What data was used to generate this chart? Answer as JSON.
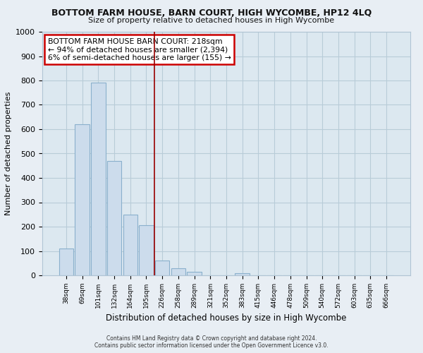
{
  "title": "BOTTOM FARM HOUSE, BARN COURT, HIGH WYCOMBE, HP12 4LQ",
  "subtitle": "Size of property relative to detached houses in High Wycombe",
  "xlabel": "Distribution of detached houses by size in High Wycombe",
  "ylabel": "Number of detached properties",
  "footer_line1": "Contains HM Land Registry data © Crown copyright and database right 2024.",
  "footer_line2": "Contains public sector information licensed under the Open Government Licence v3.0.",
  "bar_labels": [
    "38sqm",
    "69sqm",
    "101sqm",
    "132sqm",
    "164sqm",
    "195sqm",
    "226sqm",
    "258sqm",
    "289sqm",
    "321sqm",
    "352sqm",
    "383sqm",
    "415sqm",
    "446sqm",
    "478sqm",
    "509sqm",
    "540sqm",
    "572sqm",
    "603sqm",
    "635sqm",
    "666sqm"
  ],
  "bar_values": [
    110,
    620,
    790,
    470,
    250,
    205,
    60,
    30,
    15,
    0,
    0,
    10,
    0,
    0,
    0,
    0,
    0,
    0,
    0,
    0,
    0
  ],
  "bar_color": "#ccdcec",
  "bar_edge_color": "#8ab0cc",
  "vline_color": "#990000",
  "ylim": [
    0,
    1000
  ],
  "yticks": [
    0,
    100,
    200,
    300,
    400,
    500,
    600,
    700,
    800,
    900,
    1000
  ],
  "annotation_line1": "BOTTOM FARM HOUSE BARN COURT: 218sqm",
  "annotation_line2": "← 94% of detached houses are smaller (2,394)",
  "annotation_line3": "6% of semi-detached houses are larger (155) →",
  "bg_color": "#e8eef4",
  "plot_bg_color": "#dce8f0",
  "grid_color": "#b8ccd8",
  "spine_color": "#b0c4d4"
}
